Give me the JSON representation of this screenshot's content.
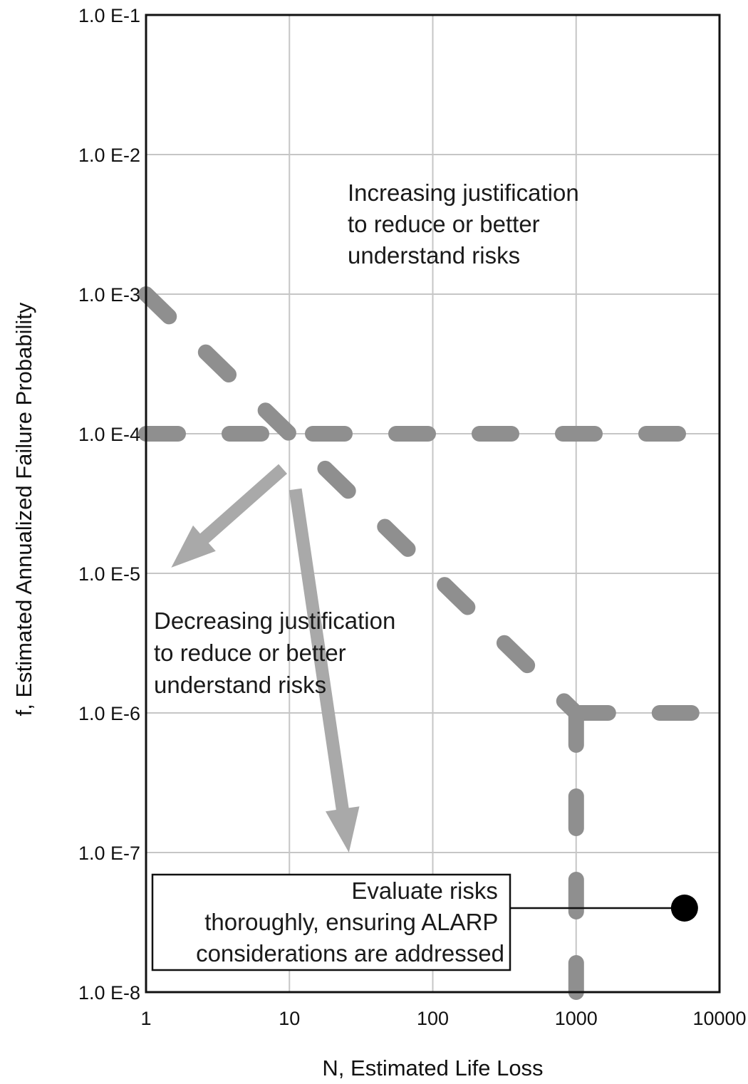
{
  "chart_data": {
    "type": "line",
    "xlabel": "N, Estimated Life Loss",
    "ylabel": "f, Estimated Annualized Failure Probability",
    "x_scale": "log",
    "y_scale": "log",
    "xlim": [
      1,
      10000
    ],
    "ylim": [
      1e-08,
      0.1
    ],
    "x_tick_labels": [
      "1",
      "10",
      "100",
      "1000",
      "10000"
    ],
    "y_tick_labels": [
      "1.0 E-8",
      "1.0 E-7",
      "1.0 E-6",
      "1.0 E-5",
      "1.0 E-4",
      "1.0 E-3",
      "1.0 E-2",
      "1.0 E-1"
    ],
    "grid": true,
    "series": [
      {
        "points": [
          [
            1,
            0.0001
          ],
          [
            10000,
            0.0001
          ]
        ],
        "style": "dashed",
        "color": "#8f8f8f"
      },
      {
        "points": [
          [
            1,
            0.001
          ],
          [
            1000,
            1e-06
          ]
        ],
        "style": "dashed",
        "color": "#8f8f8f"
      },
      {
        "points": [
          [
            1000,
            1e-06
          ],
          [
            10000,
            1e-06
          ]
        ],
        "style": "dashed",
        "color": "#8f8f8f"
      },
      {
        "points": [
          [
            1000,
            1e-06
          ],
          [
            1000,
            1e-08
          ]
        ],
        "style": "dashed",
        "color": "#8f8f8f"
      }
    ],
    "arrows": [
      {
        "from": [
          11,
          4e-05
        ],
        "to": [
          26,
          1e-07
        ],
        "color": "#a9a9a9"
      },
      {
        "from": [
          9,
          5.6e-05
        ],
        "to": [
          1.5,
          1.1e-05
        ],
        "color": "#a9a9a9"
      }
    ],
    "marker": {
      "point": [
        5700,
        4e-08
      ]
    },
    "annotations": [
      {
        "id": "increasing",
        "lines": [
          "Increasing justification",
          "to reduce or better",
          "understand risks"
        ],
        "boxed": false
      },
      {
        "id": "decreasing",
        "lines": [
          "Decreasing justification",
          "to reduce or better",
          "understand risks"
        ],
        "boxed": false
      },
      {
        "id": "evaluate",
        "lines": [
          "Evaluate risks",
          "thoroughly, ensuring ALARP",
          "considerations are addressed"
        ],
        "boxed": true
      }
    ]
  }
}
